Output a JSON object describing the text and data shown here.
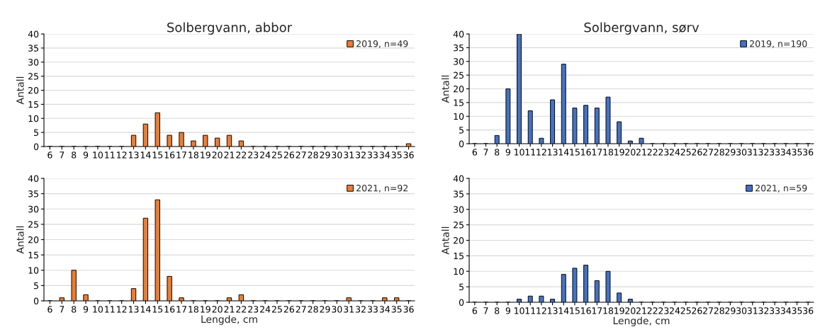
{
  "chart_data": [
    {
      "type": "bar",
      "title": "Solbergvann, abbor",
      "ylabel": "Antall",
      "categories": [
        "6",
        "7",
        "8",
        "9",
        "10",
        "11",
        "12",
        "13",
        "14",
        "15",
        "16",
        "17",
        "18",
        "19",
        "20",
        "21",
        "22",
        "23",
        "24",
        "25",
        "26",
        "27",
        "28",
        "29",
        "30",
        "31",
        "32",
        "33",
        "34",
        "35",
        "36"
      ],
      "series": [
        {
          "name": "2019, n=49",
          "color": "#ed7d31",
          "values": [
            0,
            0,
            0,
            0,
            0,
            0,
            0,
            4,
            8,
            12,
            4,
            5,
            2,
            4,
            3,
            4,
            2,
            0,
            0,
            0,
            0,
            0,
            0,
            0,
            0,
            0,
            0,
            0,
            0,
            0,
            1
          ]
        }
      ],
      "ylim": [
        0,
        40
      ],
      "yticks": [
        0,
        5,
        10,
        15,
        20,
        25,
        30,
        35,
        40
      ],
      "grid": "y",
      "legend": "top right"
    },
    {
      "type": "bar",
      "title": "Solbergvann, sørv",
      "ylabel": "Antall",
      "categories": [
        "6",
        "7",
        "8",
        "9",
        "10",
        "11",
        "12",
        "13",
        "14",
        "15",
        "16",
        "17",
        "18",
        "19",
        "20",
        "21",
        "22",
        "23",
        "24",
        "25",
        "26",
        "27",
        "28",
        "29",
        "30",
        "31",
        "32",
        "33",
        "34",
        "35",
        "36"
      ],
      "series": [
        {
          "name": "2019, n=190",
          "color": "#4472c4",
          "values": [
            0,
            0,
            3,
            20,
            40,
            12,
            2,
            16,
            29,
            13,
            14,
            13,
            17,
            8,
            1,
            2,
            0,
            0,
            0,
            0,
            0,
            0,
            0,
            0,
            0,
            0,
            0,
            0,
            0,
            0,
            0
          ]
        }
      ],
      "ylim": [
        0,
        40
      ],
      "yticks": [
        0,
        5,
        10,
        15,
        20,
        25,
        30,
        35,
        40
      ],
      "grid": "y",
      "legend": "top right"
    },
    {
      "type": "bar",
      "xlabel": "Lengde, cm",
      "ylabel": "Antall",
      "categories": [
        "6",
        "7",
        "8",
        "9",
        "10",
        "11",
        "12",
        "13",
        "14",
        "15",
        "16",
        "17",
        "18",
        "19",
        "20",
        "21",
        "22",
        "23",
        "24",
        "25",
        "26",
        "27",
        "28",
        "29",
        "30",
        "31",
        "32",
        "33",
        "34",
        "35",
        "36"
      ],
      "series": [
        {
          "name": "2021, n=92",
          "color": "#ed7d31",
          "values": [
            0,
            1,
            10,
            2,
            0,
            0,
            0,
            4,
            27,
            33,
            8,
            1,
            0,
            0,
            0,
            1,
            2,
            0,
            0,
            0,
            0,
            0,
            0,
            0,
            0,
            1,
            0,
            0,
            1,
            1,
            0
          ]
        }
      ],
      "ylim": [
        0,
        40
      ],
      "yticks": [
        0,
        5,
        10,
        15,
        20,
        25,
        30,
        35,
        40
      ],
      "grid": "y",
      "legend": "top right"
    },
    {
      "type": "bar",
      "xlabel": "Lengde, cm",
      "ylabel": "Antall",
      "categories": [
        "6",
        "7",
        "8",
        "9",
        "10",
        "11",
        "12",
        "13",
        "14",
        "15",
        "16",
        "17",
        "18",
        "19",
        "20",
        "21",
        "22",
        "23",
        "24",
        "25",
        "26",
        "27",
        "28",
        "29",
        "30",
        "31",
        "32",
        "33",
        "34",
        "35",
        "36"
      ],
      "series": [
        {
          "name": "2021, n=59",
          "color": "#4472c4",
          "values": [
            0,
            0,
            0,
            0,
            1,
            2,
            2,
            1,
            9,
            11,
            12,
            7,
            10,
            3,
            1,
            0,
            0,
            0,
            0,
            0,
            0,
            0,
            0,
            0,
            0,
            0,
            0,
            0,
            0,
            0,
            0
          ]
        }
      ],
      "ylim": [
        0,
        40
      ],
      "yticks": [
        0,
        5,
        10,
        15,
        20,
        25,
        30,
        35,
        40
      ],
      "grid": "y",
      "legend": "top right"
    }
  ]
}
